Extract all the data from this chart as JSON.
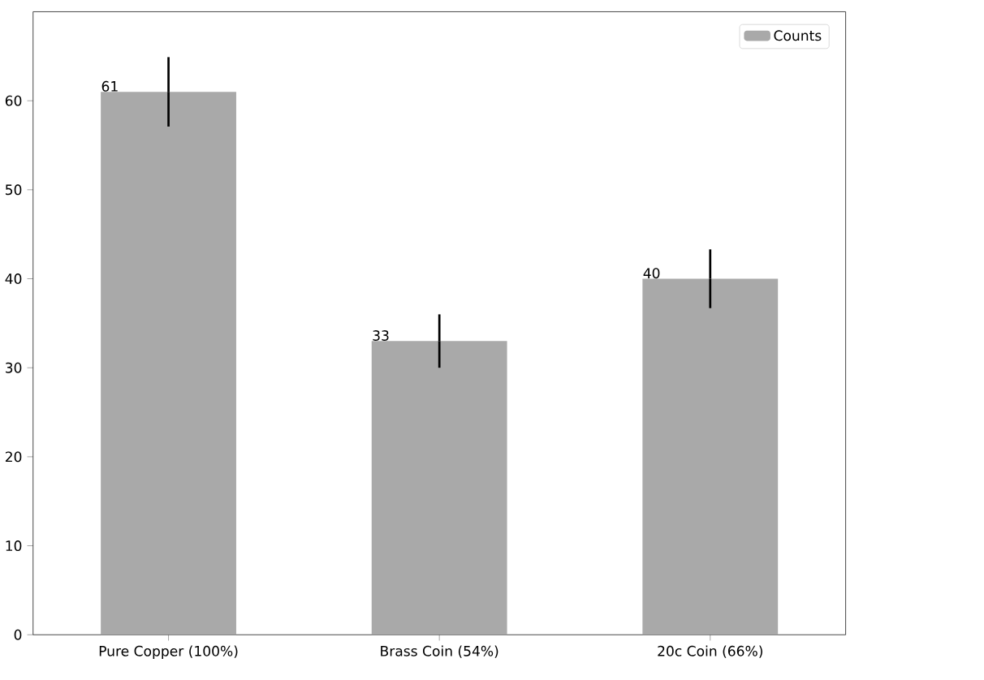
{
  "chart_data": {
    "type": "bar",
    "categories": [
      "Pure Copper (100%)",
      "Brass Coin (54%)",
      "20c Coin (66%)"
    ],
    "series": [
      {
        "name": "Counts",
        "color": "#a9a9a9",
        "values": [
          61,
          33,
          40
        ],
        "errors": [
          3.9,
          3,
          3.3
        ]
      }
    ],
    "ylim": [
      0,
      70
    ],
    "yticks": [
      0,
      10,
      20,
      30,
      40,
      50,
      60
    ],
    "legend": "top right",
    "data_labels": true,
    "grid": false
  }
}
